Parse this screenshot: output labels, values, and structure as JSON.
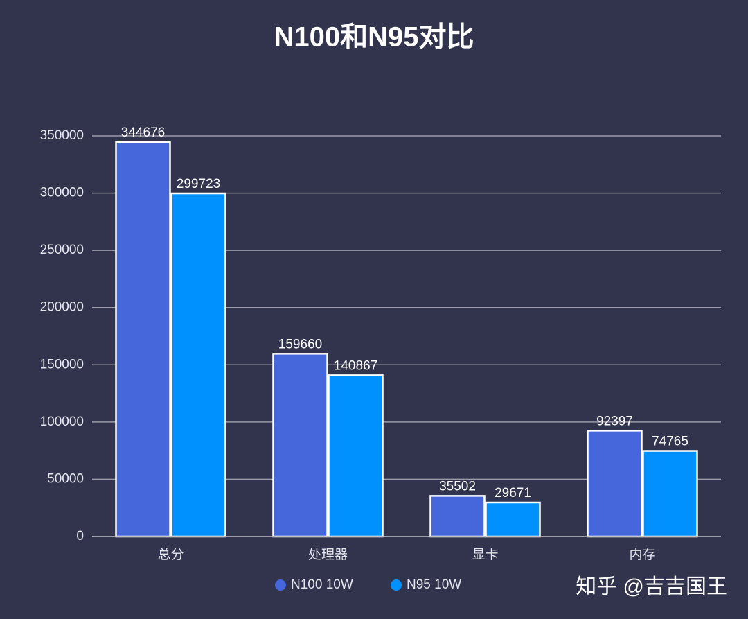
{
  "chart_data": {
    "type": "bar",
    "title": "N100和N95对比",
    "categories": [
      "总分",
      "处理器",
      "显卡",
      "内存"
    ],
    "series": [
      {
        "name": "N100 10W",
        "color": "#4666dc",
        "values": [
          344676,
          159660,
          35502,
          92397
        ]
      },
      {
        "name": "N95 10W",
        "color": "#0091ff",
        "values": [
          299723,
          140867,
          29671,
          74765
        ]
      }
    ],
    "ylim": [
      0,
      350000
    ],
    "yticks": [
      0,
      50000,
      100000,
      150000,
      200000,
      250000,
      300000,
      350000
    ],
    "grid": true,
    "legend": "bottom"
  },
  "watermark": "知乎 @吉吉国王"
}
